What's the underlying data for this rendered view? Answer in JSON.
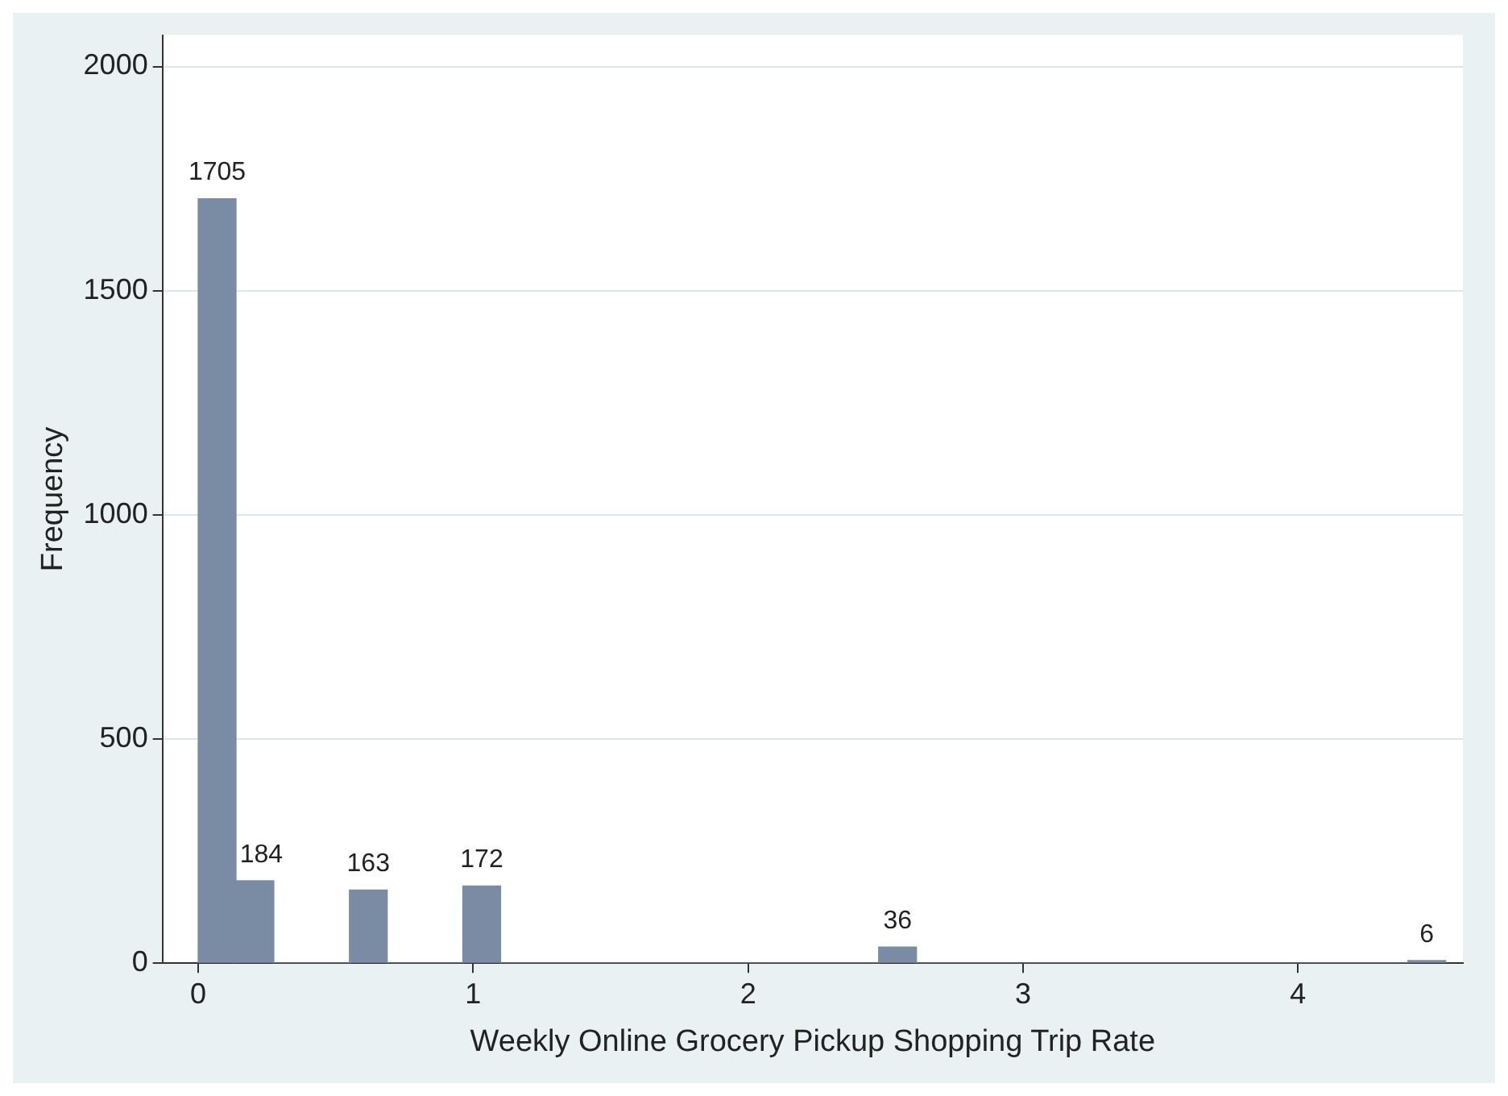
{
  "chart_data": {
    "type": "histogram",
    "xlabel": "Weekly Online Grocery Pickup Shopping Trip Rate",
    "ylabel": "Frequency",
    "bins": [
      0,
      0.1375,
      0.275,
      0.55,
      0.6875,
      0.9625,
      1.1,
      2.475,
      2.6125,
      4.4,
      4.5375
    ],
    "values": [
      1705,
      184,
      0,
      163,
      0,
      172,
      0,
      36,
      0,
      6
    ],
    "value_labels": [
      "1705",
      "184",
      null,
      "163",
      null,
      "172",
      null,
      "36",
      null,
      "6"
    ],
    "color": "#7a8ca3",
    "xlim": [
      -0.13,
      4.6
    ],
    "xticks": [
      0,
      1,
      2,
      3,
      4
    ],
    "ylim": [
      0,
      2070
    ],
    "yticks": [
      0,
      500,
      1000,
      1500,
      2000
    ],
    "grid": "y",
    "legend": false
  }
}
